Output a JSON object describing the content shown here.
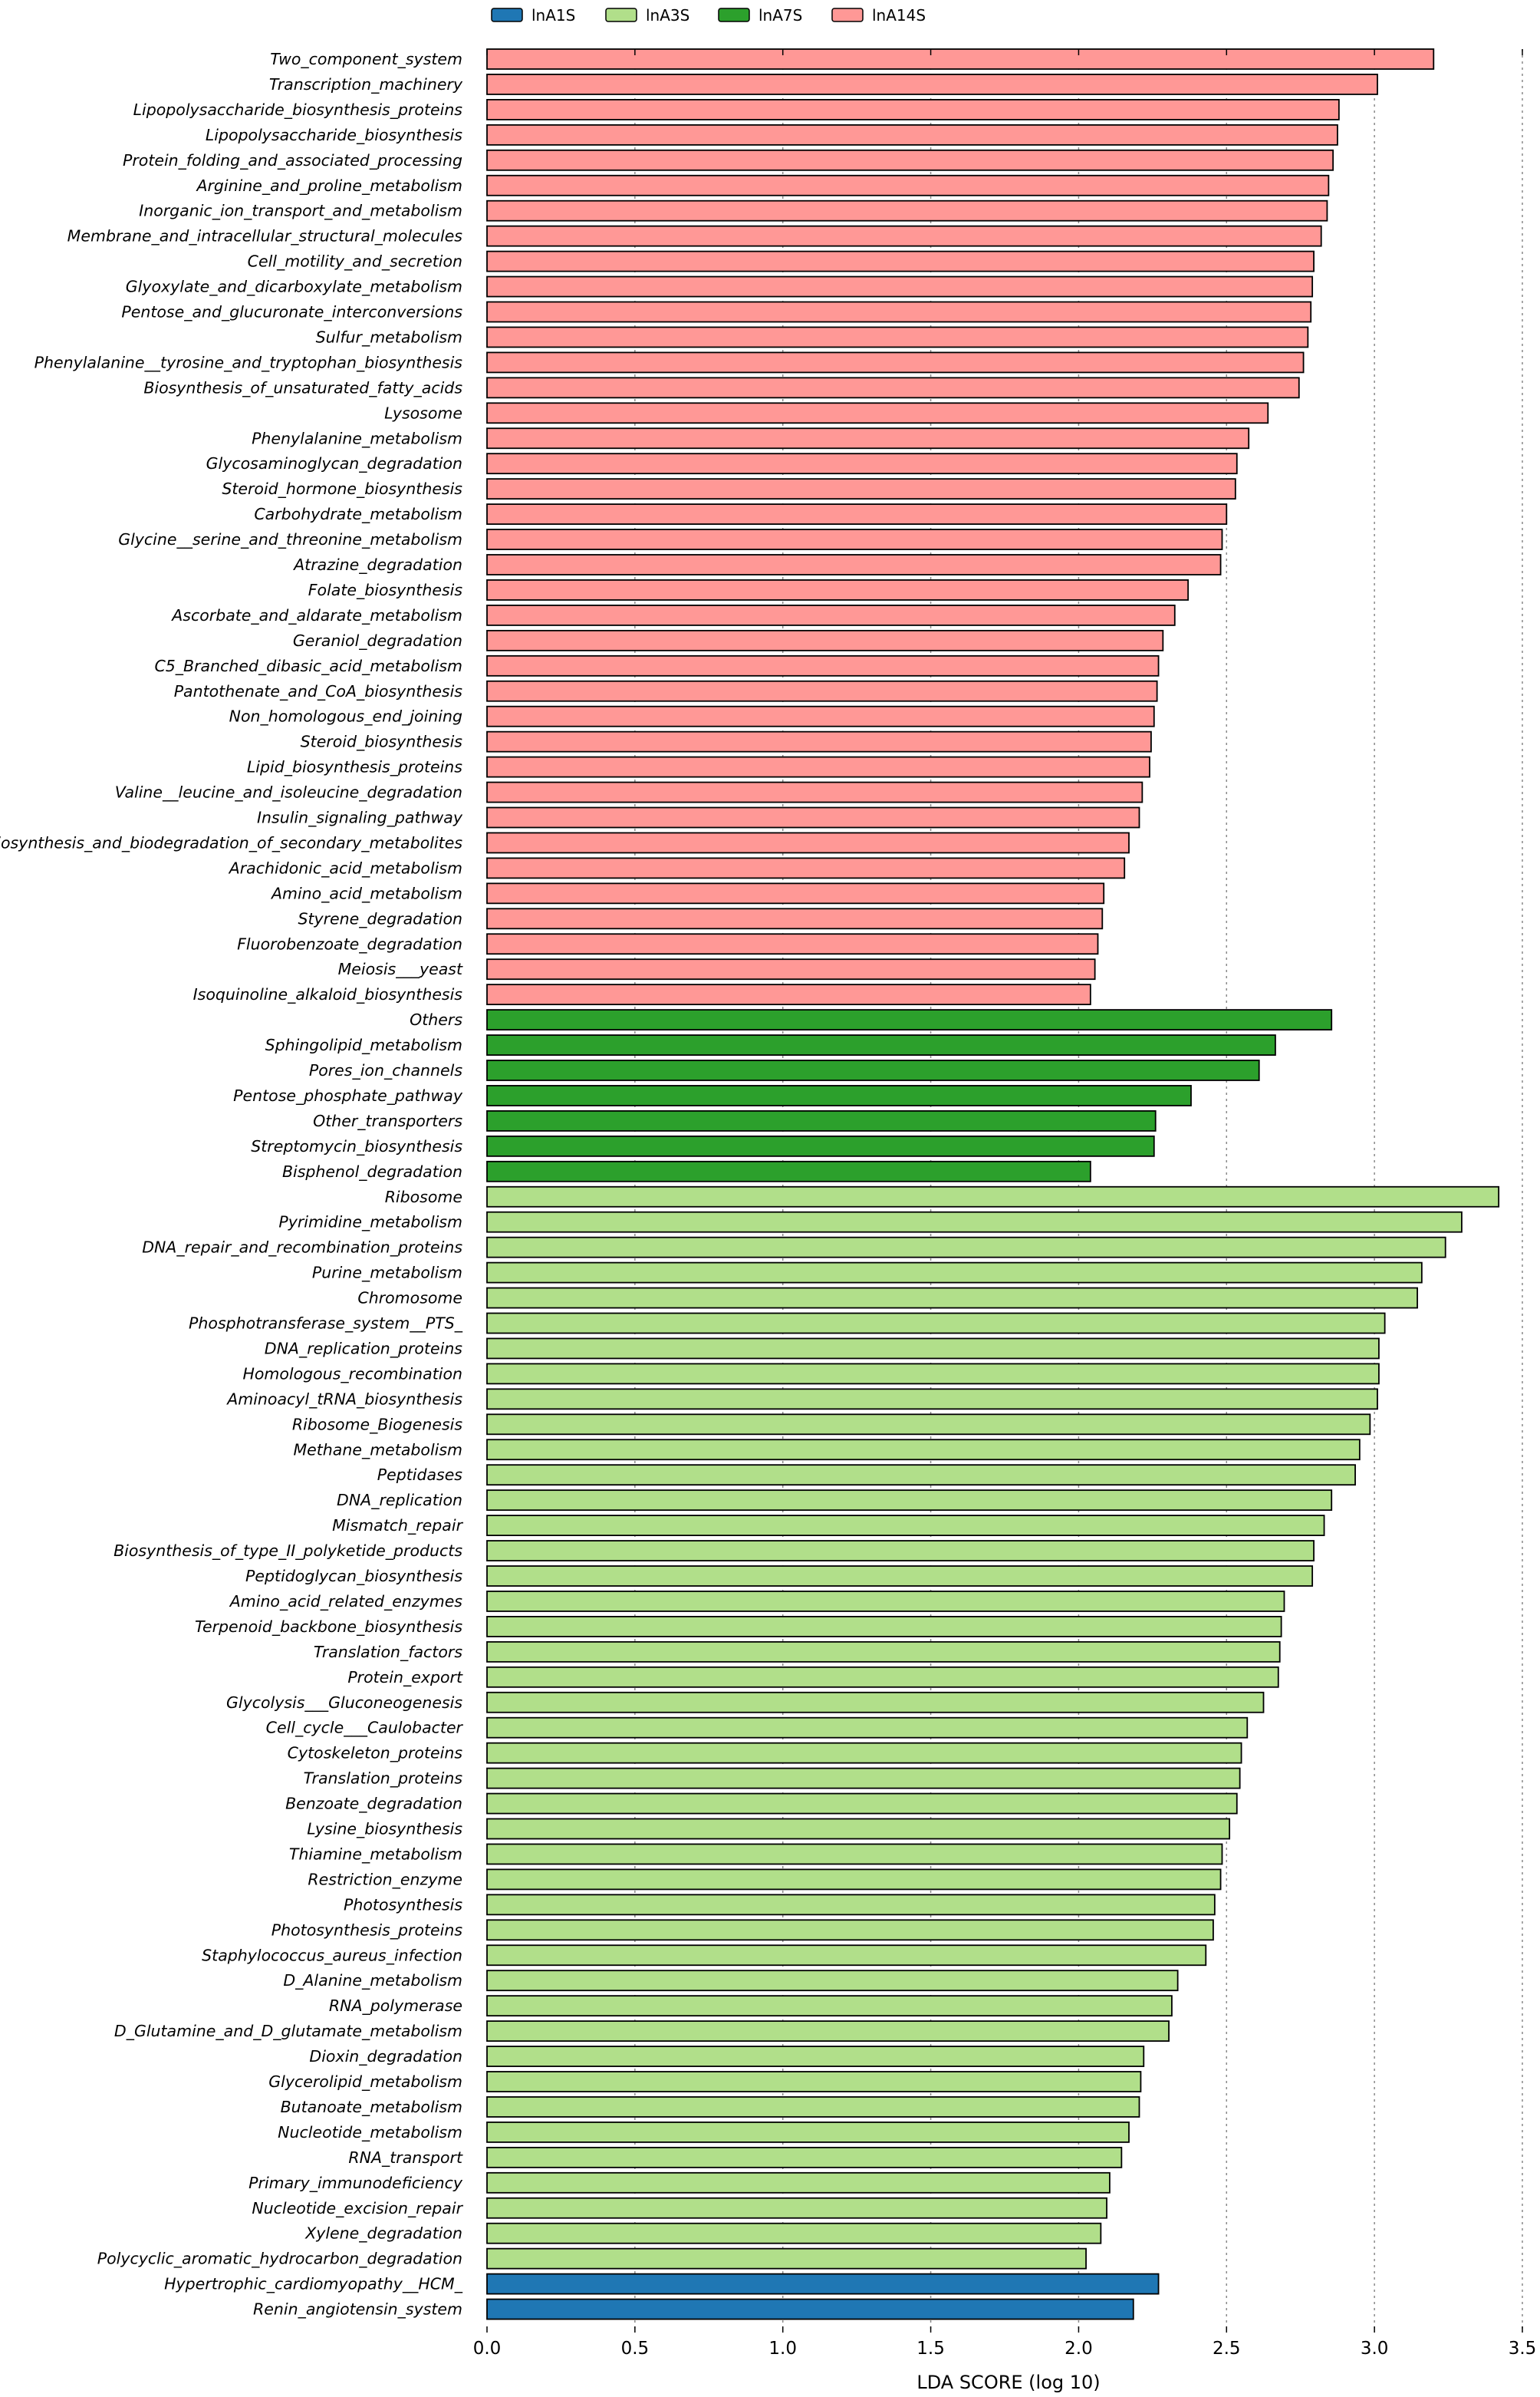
{
  "chart_data": {
    "type": "bar",
    "orientation": "horizontal",
    "title": "",
    "xlabel": "LDA SCORE (log 10)",
    "ylabel": "",
    "xlim": [
      0,
      3.5
    ],
    "xticks": [
      "0.0",
      "0.5",
      "1.0",
      "1.5",
      "2.0",
      "2.5",
      "3.0",
      "3.5"
    ],
    "grid": "vertical dotted lines at ticks",
    "legend_position": "top",
    "groups": [
      {
        "name": "lnA1S",
        "color": "#1f77b4"
      },
      {
        "name": "lnA3S",
        "color": "#b1df8a"
      },
      {
        "name": "lnA7S",
        "color": "#2ca02c"
      },
      {
        "name": "lnA14S",
        "color": "#ff9896"
      }
    ],
    "bars": [
      {
        "label": "Two_component_system",
        "group": "lnA14S",
        "value": 3.2
      },
      {
        "label": "Transcription_machinery",
        "group": "lnA14S",
        "value": 3.01
      },
      {
        "label": "Lipopolysaccharide_biosynthesis_proteins",
        "group": "lnA14S",
        "value": 2.88
      },
      {
        "label": "Lipopolysaccharide_biosynthesis",
        "group": "lnA14S",
        "value": 2.875
      },
      {
        "label": "Protein_folding_and_associated_processing",
        "group": "lnA14S",
        "value": 2.86
      },
      {
        "label": "Arginine_and_proline_metabolism",
        "group": "lnA14S",
        "value": 2.845
      },
      {
        "label": "Inorganic_ion_transport_and_metabolism",
        "group": "lnA14S",
        "value": 2.84
      },
      {
        "label": "Membrane_and_intracellular_structural_molecules",
        "group": "lnA14S",
        "value": 2.82
      },
      {
        "label": "Cell_motility_and_secretion",
        "group": "lnA14S",
        "value": 2.795
      },
      {
        "label": "Glyoxylate_and_dicarboxylate_metabolism",
        "group": "lnA14S",
        "value": 2.79
      },
      {
        "label": "Pentose_and_glucuronate_interconversions",
        "group": "lnA14S",
        "value": 2.785
      },
      {
        "label": "Sulfur_metabolism",
        "group": "lnA14S",
        "value": 2.775
      },
      {
        "label": "Phenylalanine__tyrosine_and_tryptophan_biosynthesis",
        "group": "lnA14S",
        "value": 2.76
      },
      {
        "label": "Biosynthesis_of_unsaturated_fatty_acids",
        "group": "lnA14S",
        "value": 2.745
      },
      {
        "label": "Lysosome",
        "group": "lnA14S",
        "value": 2.64
      },
      {
        "label": "Phenylalanine_metabolism",
        "group": "lnA14S",
        "value": 2.575
      },
      {
        "label": "Glycosaminoglycan_degradation",
        "group": "lnA14S",
        "value": 2.535
      },
      {
        "label": "Steroid_hormone_biosynthesis",
        "group": "lnA14S",
        "value": 2.53
      },
      {
        "label": "Carbohydrate_metabolism",
        "group": "lnA14S",
        "value": 2.5
      },
      {
        "label": "Glycine__serine_and_threonine_metabolism",
        "group": "lnA14S",
        "value": 2.485
      },
      {
        "label": "Atrazine_degradation",
        "group": "lnA14S",
        "value": 2.48
      },
      {
        "label": "Folate_biosynthesis",
        "group": "lnA14S",
        "value": 2.37
      },
      {
        "label": "Ascorbate_and_aldarate_metabolism",
        "group": "lnA14S",
        "value": 2.325
      },
      {
        "label": "Geraniol_degradation",
        "group": "lnA14S",
        "value": 2.285
      },
      {
        "label": "C5_Branched_dibasic_acid_metabolism",
        "group": "lnA14S",
        "value": 2.27
      },
      {
        "label": "Pantothenate_and_CoA_biosynthesis",
        "group": "lnA14S",
        "value": 2.265
      },
      {
        "label": "Non_homologous_end_joining",
        "group": "lnA14S",
        "value": 2.255
      },
      {
        "label": "Steroid_biosynthesis",
        "group": "lnA14S",
        "value": 2.245
      },
      {
        "label": "Lipid_biosynthesis_proteins",
        "group": "lnA14S",
        "value": 2.24
      },
      {
        "label": "Valine__leucine_and_isoleucine_degradation",
        "group": "lnA14S",
        "value": 2.215
      },
      {
        "label": "Insulin_signaling_pathway",
        "group": "lnA14S",
        "value": 2.205
      },
      {
        "label": "Biosynthesis_and_biodegradation_of_secondary_metabolites",
        "group": "lnA14S",
        "value": 2.17
      },
      {
        "label": "Arachidonic_acid_metabolism",
        "group": "lnA14S",
        "value": 2.155
      },
      {
        "label": "Amino_acid_metabolism",
        "group": "lnA14S",
        "value": 2.085
      },
      {
        "label": "Styrene_degradation",
        "group": "lnA14S",
        "value": 2.08
      },
      {
        "label": "Fluorobenzoate_degradation",
        "group": "lnA14S",
        "value": 2.065
      },
      {
        "label": "Meiosis___yeast",
        "group": "lnA14S",
        "value": 2.055
      },
      {
        "label": "Isoquinoline_alkaloid_biosynthesis",
        "group": "lnA14S",
        "value": 2.04
      },
      {
        "label": "Others",
        "group": "lnA7S",
        "value": 2.855
      },
      {
        "label": "Sphingolipid_metabolism",
        "group": "lnA7S",
        "value": 2.665
      },
      {
        "label": "Pores_ion_channels",
        "group": "lnA7S",
        "value": 2.61
      },
      {
        "label": "Pentose_phosphate_pathway",
        "group": "lnA7S",
        "value": 2.38
      },
      {
        "label": "Other_transporters",
        "group": "lnA7S",
        "value": 2.26
      },
      {
        "label": "Streptomycin_biosynthesis",
        "group": "lnA7S",
        "value": 2.255
      },
      {
        "label": "Bisphenol_degradation",
        "group": "lnA7S",
        "value": 2.04
      },
      {
        "label": "Ribosome",
        "group": "lnA3S",
        "value": 3.42
      },
      {
        "label": "Pyrimidine_metabolism",
        "group": "lnA3S",
        "value": 3.295
      },
      {
        "label": "DNA_repair_and_recombination_proteins",
        "group": "lnA3S",
        "value": 3.24
      },
      {
        "label": "Purine_metabolism",
        "group": "lnA3S",
        "value": 3.16
      },
      {
        "label": "Chromosome",
        "group": "lnA3S",
        "value": 3.145
      },
      {
        "label": "Phosphotransferase_system__PTS_",
        "group": "lnA3S",
        "value": 3.035
      },
      {
        "label": "DNA_replication_proteins",
        "group": "lnA3S",
        "value": 3.015
      },
      {
        "label": "Homologous_recombination",
        "group": "lnA3S",
        "value": 3.015
      },
      {
        "label": "Aminoacyl_tRNA_biosynthesis",
        "group": "lnA3S",
        "value": 3.01
      },
      {
        "label": "Ribosome_Biogenesis",
        "group": "lnA3S",
        "value": 2.985
      },
      {
        "label": "Methane_metabolism",
        "group": "lnA3S",
        "value": 2.95
      },
      {
        "label": "Peptidases",
        "group": "lnA3S",
        "value": 2.935
      },
      {
        "label": "DNA_replication",
        "group": "lnA3S",
        "value": 2.855
      },
      {
        "label": "Mismatch_repair",
        "group": "lnA3S",
        "value": 2.83
      },
      {
        "label": "Biosynthesis_of_type_II_polyketide_products",
        "group": "lnA3S",
        "value": 2.795
      },
      {
        "label": "Peptidoglycan_biosynthesis",
        "group": "lnA3S",
        "value": 2.79
      },
      {
        "label": "Amino_acid_related_enzymes",
        "group": "lnA3S",
        "value": 2.695
      },
      {
        "label": "Terpenoid_backbone_biosynthesis",
        "group": "lnA3S",
        "value": 2.685
      },
      {
        "label": "Translation_factors",
        "group": "lnA3S",
        "value": 2.68
      },
      {
        "label": "Protein_export",
        "group": "lnA3S",
        "value": 2.675
      },
      {
        "label": "Glycolysis___Gluconeogenesis",
        "group": "lnA3S",
        "value": 2.625
      },
      {
        "label": "Cell_cycle___Caulobacter",
        "group": "lnA3S",
        "value": 2.57
      },
      {
        "label": "Cytoskeleton_proteins",
        "group": "lnA3S",
        "value": 2.55
      },
      {
        "label": "Translation_proteins",
        "group": "lnA3S",
        "value": 2.545
      },
      {
        "label": "Benzoate_degradation",
        "group": "lnA3S",
        "value": 2.535
      },
      {
        "label": "Lysine_biosynthesis",
        "group": "lnA3S",
        "value": 2.51
      },
      {
        "label": "Thiamine_metabolism",
        "group": "lnA3S",
        "value": 2.485
      },
      {
        "label": "Restriction_enzyme",
        "group": "lnA3S",
        "value": 2.48
      },
      {
        "label": "Photosynthesis",
        "group": "lnA3S",
        "value": 2.46
      },
      {
        "label": "Photosynthesis_proteins",
        "group": "lnA3S",
        "value": 2.455
      },
      {
        "label": "Staphylococcus_aureus_infection",
        "group": "lnA3S",
        "value": 2.43
      },
      {
        "label": "D_Alanine_metabolism",
        "group": "lnA3S",
        "value": 2.335
      },
      {
        "label": "RNA_polymerase",
        "group": "lnA3S",
        "value": 2.315
      },
      {
        "label": "D_Glutamine_and_D_glutamate_metabolism",
        "group": "lnA3S",
        "value": 2.305
      },
      {
        "label": "Dioxin_degradation",
        "group": "lnA3S",
        "value": 2.22
      },
      {
        "label": "Glycerolipid_metabolism",
        "group": "lnA3S",
        "value": 2.21
      },
      {
        "label": "Butanoate_metabolism",
        "group": "lnA3S",
        "value": 2.205
      },
      {
        "label": "Nucleotide_metabolism",
        "group": "lnA3S",
        "value": 2.17
      },
      {
        "label": "RNA_transport",
        "group": "lnA3S",
        "value": 2.145
      },
      {
        "label": "Primary_immunodeficiency",
        "group": "lnA3S",
        "value": 2.105
      },
      {
        "label": "Nucleotide_excision_repair",
        "group": "lnA3S",
        "value": 2.095
      },
      {
        "label": "Xylene_degradation",
        "group": "lnA3S",
        "value": 2.075
      },
      {
        "label": "Polycyclic_aromatic_hydrocarbon_degradation",
        "group": "lnA3S",
        "value": 2.025
      },
      {
        "label": "Hypertrophic_cardiomyopathy__HCM_",
        "group": "lnA1S",
        "value": 2.27
      },
      {
        "label": "Renin_angiotensin_system",
        "group": "lnA1S",
        "value": 2.185
      }
    ]
  }
}
